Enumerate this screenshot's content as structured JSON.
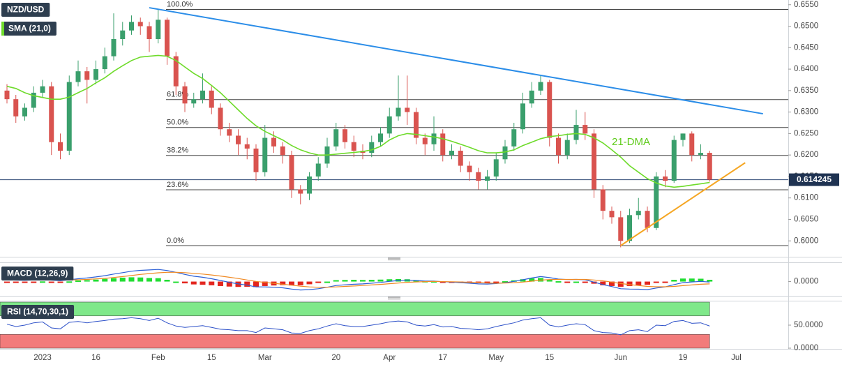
{
  "chart_data": [
    {
      "type": "candlestick",
      "title": "NZD/USD",
      "categories": [
        null,
        null,
        null,
        null,
        "2023",
        null,
        null,
        null,
        null,
        null,
        "16",
        null,
        null,
        null,
        null,
        null,
        null,
        "Feb",
        null,
        null,
        null,
        null,
        null,
        "15",
        null,
        null,
        null,
        null,
        null,
        "Mar",
        null,
        null,
        null,
        null,
        null,
        null,
        null,
        "20",
        null,
        null,
        null,
        null,
        null,
        "Apr",
        null,
        null,
        null,
        null,
        null,
        "17",
        null,
        null,
        null,
        null,
        null,
        "May",
        null,
        null,
        null,
        null,
        null,
        "15",
        null,
        null,
        null,
        null,
        null,
        null,
        null,
        "Jun",
        null,
        null,
        null,
        null,
        null,
        null,
        "19",
        null,
        null,
        null,
        null,
        null,
        "Jul",
        null,
        null,
        null
      ],
      "ohlc": [
        [
          0.635,
          0.6365,
          0.632,
          0.633
        ],
        [
          0.633,
          0.634,
          0.6275,
          0.629
        ],
        [
          0.629,
          0.632,
          0.628,
          0.631
        ],
        [
          0.631,
          0.636,
          0.63,
          0.6345
        ],
        [
          0.6345,
          0.6375,
          0.6335,
          0.636
        ],
        [
          0.636,
          0.637,
          0.62,
          0.623
        ],
        [
          0.623,
          0.625,
          0.619,
          0.621
        ],
        [
          0.621,
          0.6385,
          0.62,
          0.637
        ],
        [
          0.637,
          0.642,
          0.636,
          0.6395
        ],
        [
          0.6395,
          0.6405,
          0.632,
          0.6375
        ],
        [
          0.6375,
          0.642,
          0.6365,
          0.64
        ],
        [
          0.64,
          0.645,
          0.639,
          0.643
        ],
        [
          0.643,
          0.653,
          0.642,
          0.647
        ],
        [
          0.647,
          0.651,
          0.6455,
          0.649
        ],
        [
          0.649,
          0.6525,
          0.648,
          0.651
        ],
        [
          0.651,
          0.652,
          0.648,
          0.65
        ],
        [
          0.65,
          0.651,
          0.644,
          0.647
        ],
        [
          0.647,
          0.6538,
          0.646,
          0.6515
        ],
        [
          0.6515,
          0.652,
          0.641,
          0.643
        ],
        [
          0.643,
          0.644,
          0.634,
          0.636
        ],
        [
          0.636,
          0.637,
          0.63,
          0.632
        ],
        [
          0.632,
          0.6345,
          0.631,
          0.633
        ],
        [
          0.633,
          0.639,
          0.632,
          0.635
        ],
        [
          0.635,
          0.636,
          0.6295,
          0.631
        ],
        [
          0.631,
          0.632,
          0.6245,
          0.626
        ],
        [
          0.626,
          0.6275,
          0.623,
          0.6245
        ],
        [
          0.6245,
          0.626,
          0.62,
          0.6225
        ],
        [
          0.6225,
          0.624,
          0.619,
          0.6215
        ],
        [
          0.6215,
          0.6225,
          0.614,
          0.616
        ],
        [
          0.616,
          0.627,
          0.615,
          0.624
        ],
        [
          0.624,
          0.6255,
          0.6205,
          0.622
        ],
        [
          0.622,
          0.623,
          0.618,
          0.62
        ],
        [
          0.62,
          0.621,
          0.61,
          0.612
        ],
        [
          0.612,
          0.613,
          0.6085,
          0.611
        ],
        [
          0.611,
          0.616,
          0.6095,
          0.615
        ],
        [
          0.615,
          0.6195,
          0.614,
          0.618
        ],
        [
          0.618,
          0.624,
          0.617,
          0.622
        ],
        [
          0.622,
          0.6275,
          0.621,
          0.626
        ],
        [
          0.626,
          0.627,
          0.6215,
          0.623
        ],
        [
          0.623,
          0.6245,
          0.6195,
          0.621
        ],
        [
          0.621,
          0.6225,
          0.619,
          0.6205
        ],
        [
          0.6205,
          0.6245,
          0.6195,
          0.623
        ],
        [
          0.623,
          0.6265,
          0.622,
          0.625
        ],
        [
          0.625,
          0.631,
          0.624,
          0.629
        ],
        [
          0.629,
          0.6385,
          0.628,
          0.631
        ],
        [
          0.631,
          0.6385,
          0.627,
          0.63
        ],
        [
          0.63,
          0.631,
          0.6225,
          0.624
        ],
        [
          0.624,
          0.625,
          0.62,
          0.6225
        ],
        [
          0.6225,
          0.629,
          0.621,
          0.625
        ],
        [
          0.625,
          0.626,
          0.6185,
          0.62
        ],
        [
          0.62,
          0.6225,
          0.619,
          0.621
        ],
        [
          0.621,
          0.622,
          0.616,
          0.6175
        ],
        [
          0.6175,
          0.6185,
          0.614,
          0.616
        ],
        [
          0.616,
          0.617,
          0.612,
          0.614
        ],
        [
          0.614,
          0.6165,
          0.612,
          0.615
        ],
        [
          0.615,
          0.6205,
          0.614,
          0.619
        ],
        [
          0.619,
          0.6235,
          0.618,
          0.622
        ],
        [
          0.622,
          0.6275,
          0.621,
          0.626
        ],
        [
          0.626,
          0.6345,
          0.625,
          0.632
        ],
        [
          0.632,
          0.637,
          0.631,
          0.635
        ],
        [
          0.635,
          0.6385,
          0.634,
          0.637
        ],
        [
          0.637,
          0.6375,
          0.622,
          0.624
        ],
        [
          0.624,
          0.625,
          0.618,
          0.62
        ],
        [
          0.62,
          0.625,
          0.619,
          0.6235
        ],
        [
          0.6235,
          0.6305,
          0.6225,
          0.627
        ],
        [
          0.627,
          0.63,
          0.6235,
          0.625
        ],
        [
          0.625,
          0.626,
          0.61,
          0.612
        ],
        [
          0.612,
          0.613,
          0.605,
          0.607
        ],
        [
          0.607,
          0.608,
          0.604,
          0.6055
        ],
        [
          0.6055,
          0.607,
          0.5985,
          0.6
        ],
        [
          0.6,
          0.6075,
          0.5995,
          0.606
        ],
        [
          0.606,
          0.61,
          0.605,
          0.607
        ],
        [
          0.607,
          0.608,
          0.602,
          0.603
        ],
        [
          0.603,
          0.616,
          0.6025,
          0.615
        ],
        [
          0.615,
          0.6165,
          0.6125,
          0.614
        ],
        [
          0.614,
          0.6245,
          0.6135,
          0.6235
        ],
        [
          0.6235,
          0.625,
          0.622,
          0.625
        ],
        [
          0.625,
          0.6255,
          0.6185,
          0.62
        ],
        [
          0.62,
          0.6225,
          0.619,
          0.6205
        ],
        [
          0.6205,
          0.621,
          0.6138,
          0.614245
        ],
        null,
        null,
        null,
        null,
        null,
        null
      ],
      "up_color": "#3a9f6c",
      "down_color": "#d9534f",
      "series": [
        {
          "name": "SMA (21,0)",
          "color": "#6edb2a",
          "values": [
            0.636,
            0.6355,
            0.6345,
            0.6338,
            0.6334,
            0.633,
            0.633,
            0.6335,
            0.6345,
            0.6355,
            0.6368,
            0.638,
            0.6395,
            0.6408,
            0.642,
            0.6428,
            0.643,
            0.6432,
            0.643,
            0.642,
            0.6405,
            0.639,
            0.6378,
            0.6362,
            0.6345,
            0.6325,
            0.6305,
            0.6285,
            0.6268,
            0.6255,
            0.6245,
            0.6235,
            0.6222,
            0.6212,
            0.6205,
            0.62,
            0.62,
            0.6202,
            0.6204,
            0.6206,
            0.6208,
            0.6212,
            0.622,
            0.6235,
            0.6245,
            0.625,
            0.6248,
            0.6245,
            0.6242,
            0.6238,
            0.6232,
            0.6225,
            0.6218,
            0.621,
            0.6205,
            0.6205,
            0.6207,
            0.6212,
            0.6222,
            0.623,
            0.6238,
            0.6243,
            0.6245,
            0.6248,
            0.625,
            0.6248,
            0.624,
            0.6228,
            0.6212,
            0.6195,
            0.6175,
            0.616,
            0.6145,
            0.6135,
            0.6128,
            0.6125,
            0.6127,
            0.613,
            0.6133,
            0.6136,
            null,
            null,
            null,
            null,
            null,
            null
          ]
        }
      ],
      "levels": [
        {
          "label": "100.0%",
          "value": 0.6539
        },
        {
          "label": "61.8%",
          "value": 0.6329
        },
        {
          "label": "50.0%",
          "value": 0.6264
        },
        {
          "label": "38.2%",
          "value": 0.6199
        },
        {
          "label": "23.6%",
          "value": 0.6119
        },
        {
          "label": "0.0%",
          "value": 0.5989
        }
      ],
      "trendlines": [
        {
          "color": "#2b8de8",
          "start": {
            "index": 16,
            "value": 0.6543
          },
          "end": {
            "index": 85,
            "value": 0.6296
          }
        },
        {
          "color": "#f5a623",
          "start": {
            "index": 69,
            "value": 0.5989
          },
          "end": {
            "index": 83,
            "value": 0.6182
          }
        }
      ],
      "annotation": "21-DMA",
      "last_price": 0.614245,
      "ylim": [
        0.5963,
        0.6561
      ],
      "yticks": [
        {
          "value": 0.655,
          "label": "0.6550"
        },
        {
          "value": 0.65,
          "label": "0.6500"
        },
        {
          "value": 0.645,
          "label": "0.6450"
        },
        {
          "value": 0.64,
          "label": "0.6400"
        },
        {
          "value": 0.635,
          "label": "0.6350"
        },
        {
          "value": 0.63,
          "label": "0.6300"
        },
        {
          "value": 0.625,
          "label": "0.6250"
        },
        {
          "value": 0.62,
          "label": "0.6200"
        },
        {
          "value": 0.615,
          "label": "0.6150"
        },
        {
          "value": 0.61,
          "label": "0.6100"
        },
        {
          "value": 0.605,
          "label": "0.6050"
        },
        {
          "value": 0.6,
          "label": "0.6000"
        }
      ]
    },
    {
      "type": "macd",
      "title": "MACD (12,26,9)",
      "series": [
        {
          "color": "#2b5fd6",
          "values": [
            0.001,
            0.0008,
            0.0007,
            0.0009,
            0.0011,
            0.0008,
            0.0005,
            0.001,
            0.0016,
            0.002,
            0.0026,
            0.0033,
            0.0042,
            0.005,
            0.0058,
            0.0063,
            0.0065,
            0.0068,
            0.0062,
            0.0052,
            0.004,
            0.003,
            0.0024,
            0.0016,
            0.0006,
            -0.0004,
            -0.0013,
            -0.002,
            -0.003,
            -0.003,
            -0.0032,
            -0.0035,
            -0.0042,
            -0.0047,
            -0.0045,
            -0.004,
            -0.0032,
            -0.0022,
            -0.0018,
            -0.0015,
            -0.0013,
            -0.0009,
            -0.0005,
            0.0001,
            0.0006,
            0.0009,
            0.0006,
            0.0003,
            0.0003,
            -0.0001,
            -0.0003,
            -0.0006,
            -0.0009,
            -0.0013,
            -0.0014,
            -0.0011,
            -0.0006,
            0.0001,
            0.001,
            0.002,
            0.0028,
            0.0022,
            0.0014,
            0.0011,
            0.0012,
            0.001,
            -0.0003,
            -0.0017,
            -0.0028,
            -0.004,
            -0.0042,
            -0.0043,
            -0.0045,
            -0.0036,
            -0.003,
            -0.0017,
            -0.0006,
            -0.0002,
            0.0001,
            -0.0003,
            null,
            null,
            null,
            null,
            null,
            null
          ]
        },
        {
          "color": "#f08a24",
          "values": [
            0.0012,
            0.0011,
            0.001,
            0.001,
            0.001,
            0.001,
            0.0009,
            0.0009,
            0.001,
            0.0012,
            0.0015,
            0.0018,
            0.0023,
            0.0028,
            0.0034,
            0.004,
            0.0045,
            0.0049,
            0.0052,
            0.0052,
            0.005,
            0.0046,
            0.0042,
            0.0037,
            0.0031,
            0.0024,
            0.0017,
            0.0009,
            0.0001,
            -0.0005,
            -0.001,
            -0.0015,
            -0.002,
            -0.0026,
            -0.003,
            -0.0032,
            -0.0032,
            -0.003,
            -0.0027,
            -0.0025,
            -0.0022,
            -0.0019,
            -0.0016,
            -0.0012,
            -0.0008,
            -0.0004,
            -0.0002,
            0,
            0.0001,
            0,
            -0.0001,
            -0.0002,
            -0.0004,
            -0.0006,
            -0.0008,
            -0.0009,
            -0.0008,
            -0.0006,
            -0.0003,
            0.0002,
            0.0008,
            0.0011,
            0.0012,
            0.0012,
            0.0012,
            0.0012,
            0.0009,
            0.0004,
            -0.0003,
            -0.0011,
            -0.0017,
            -0.0022,
            -0.0027,
            -0.0029,
            -0.0029,
            -0.0027,
            -0.0023,
            -0.0019,
            -0.0015,
            -0.0013,
            null,
            null,
            null,
            null,
            null,
            null
          ]
        }
      ],
      "histogram": {
        "up_color": "#22dd33",
        "down_color": "#e3261f",
        "values": [
          -0.0002,
          -0.0003,
          -0.0003,
          -0.0001,
          0.0001,
          -0.0002,
          -0.0004,
          0.0001,
          0.0006,
          0.0008,
          0.0011,
          0.0015,
          0.0019,
          0.0022,
          0.0024,
          0.0023,
          0.002,
          0.0019,
          0.001,
          0,
          -0.001,
          -0.0016,
          -0.0018,
          -0.0021,
          -0.0025,
          -0.0028,
          -0.003,
          -0.0029,
          -0.0031,
          -0.0025,
          -0.0022,
          -0.002,
          -0.0022,
          -0.0021,
          -0.0015,
          -0.0008,
          0,
          0.0008,
          0.0009,
          0.001,
          0.0009,
          0.001,
          0.0011,
          0.0013,
          0.0014,
          0.0013,
          0.0008,
          0.0003,
          0.0002,
          -0.0001,
          -0.0002,
          -0.0004,
          -0.0005,
          -0.0007,
          -0.0006,
          -0.0002,
          0.0002,
          0.0007,
          0.0013,
          0.0018,
          0.002,
          0.0011,
          0.0002,
          -0.0001,
          0,
          -0.0002,
          -0.0012,
          -0.0021,
          -0.0025,
          -0.0029,
          -0.0025,
          -0.0021,
          -0.0018,
          -0.0007,
          -0.0001,
          0.001,
          0.0017,
          0.0017,
          0.0016,
          0.001,
          null,
          null,
          null,
          null,
          null,
          null
        ]
      },
      "ylim": [
        -0.008,
        0.01
      ],
      "yticks": [
        {
          "value": 0,
          "label": "0.0000"
        }
      ]
    },
    {
      "type": "rsi",
      "title": "RSI (14,70,30,1)",
      "series": [
        {
          "color": "#2b4fc8",
          "values": [
            52,
            47,
            50,
            55,
            57,
            44,
            42,
            56,
            58,
            55,
            58,
            60,
            63,
            64,
            66,
            64,
            60,
            65,
            55,
            48,
            45,
            47,
            49,
            45,
            41,
            40,
            38,
            38,
            34,
            44,
            42,
            40,
            33,
            32,
            38,
            42,
            48,
            53,
            49,
            47,
            47,
            50,
            53,
            57,
            59,
            57,
            50,
            48,
            51,
            46,
            47,
            43,
            42,
            40,
            42,
            47,
            51,
            55,
            61,
            64,
            66,
            50,
            46,
            50,
            53,
            51,
            38,
            34,
            33,
            29,
            38,
            40,
            36,
            50,
            49,
            58,
            60,
            54,
            55,
            48,
            null,
            null,
            null,
            null,
            null,
            null
          ]
        }
      ],
      "bands": [
        {
          "from": 70,
          "to": 100,
          "color": "#7fe88a"
        },
        {
          "from": 0,
          "to": 30,
          "color": "#f27b7b"
        }
      ],
      "ylim": [
        0,
        100
      ],
      "yticks": [
        {
          "value": 50,
          "label": "50.0000"
        },
        {
          "value": 0,
          "label": "0.0000"
        }
      ]
    }
  ]
}
